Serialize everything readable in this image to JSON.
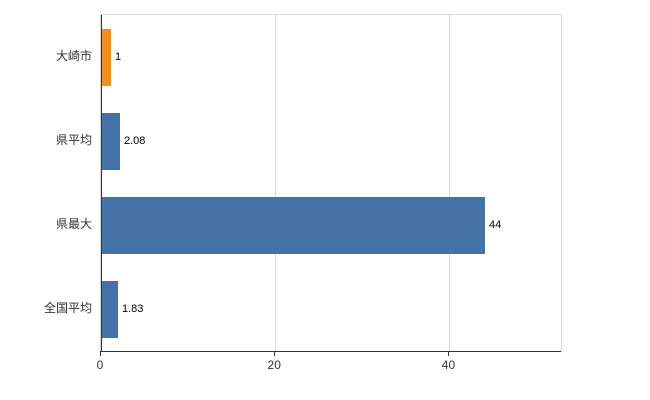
{
  "chart_data": {
    "type": "bar",
    "orientation": "horizontal",
    "title": "",
    "xlabel": "",
    "ylabel": "",
    "categories": [
      "大崎市",
      "県平均",
      "県最大",
      "全国平均"
    ],
    "values": [
      1,
      2.08,
      44,
      1.83
    ],
    "value_labels": [
      "1",
      "2.08",
      "44",
      "1.83"
    ],
    "bar_colors": [
      "#f28f20",
      "#4572a7",
      "#4572a7",
      "#4572a7"
    ],
    "xlim": [
      0,
      52.8
    ],
    "x_ticks": [
      0,
      20,
      40
    ],
    "x_tick_labels": [
      "0",
      "20",
      "40"
    ],
    "grid": true,
    "legend": false
  },
  "style": {
    "plot_border_color": "#d8d8d8",
    "gridline_color": "#d8d8d8",
    "axis_line_color": "#333333",
    "category_label_color": "#333333",
    "value_label_color": "#000000",
    "background_color": "#ffffff"
  }
}
